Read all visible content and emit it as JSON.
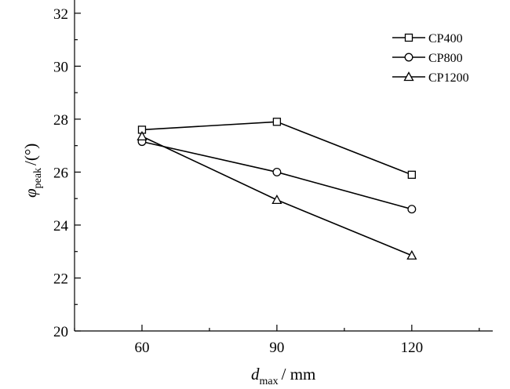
{
  "chart_data": {
    "type": "line",
    "x": [
      60,
      90,
      120
    ],
    "xlim": [
      45,
      138
    ],
    "ylim": [
      20,
      32.5
    ],
    "xticks": [
      "60",
      "90",
      "120"
    ],
    "yticks": [
      "20",
      "22",
      "24",
      "26",
      "28",
      "30",
      "32"
    ],
    "xlabel": {
      "main": "d",
      "sub": "max",
      "rest": "/ mm"
    },
    "ylabel": {
      "main": "φ",
      "sub": "peak",
      "rest": "/(°)"
    },
    "legend_position": "top-right",
    "grid": false,
    "series": [
      {
        "name": "CP400",
        "marker": "square",
        "values": [
          27.6,
          27.9,
          25.9
        ]
      },
      {
        "name": "CP800",
        "marker": "circle",
        "values": [
          27.15,
          26.0,
          24.6
        ]
      },
      {
        "name": "CP1200",
        "marker": "triangle",
        "values": [
          27.35,
          24.95,
          22.85
        ]
      }
    ]
  }
}
